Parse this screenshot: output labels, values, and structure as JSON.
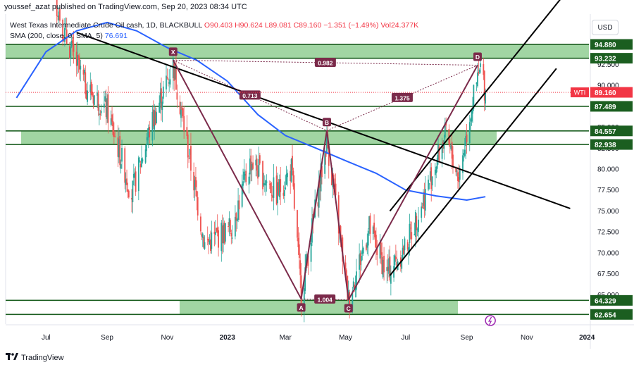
{
  "publisher_line": "youssef_azat published on TradingView.com, Sep 20, 2023 08:34 UTC",
  "legend": {
    "symbol": "West Texas Intermediate Crude Oil cash, 1D, BLACKBULL",
    "open": "O90.403",
    "high": "H90.624",
    "low": "L89.081",
    "close": "C89.160",
    "change": "−1.351 (−1.49%)",
    "volume": "Vol24.377K",
    "sma_label": "SMA (200, close, 0, SMA, 5)",
    "sma_value": "76.691"
  },
  "currency_button": "USD",
  "footer_brand": "TradingView",
  "colors": {
    "up": "#26a69a",
    "down": "#ef5350",
    "sma": "#2962ff",
    "pattern": "#7b2a4a",
    "zone": "#81c784",
    "zone_border": "#1b5e20",
    "price_label": "#f23645"
  },
  "chart_data": {
    "type": "candlestick",
    "y_axis": {
      "ticks": [
        "92.500",
        "90.000",
        "87.500",
        "85.000",
        "82.500",
        "80.000",
        "77.500",
        "75.000",
        "72.500",
        "70.000",
        "67.500",
        "65.000"
      ],
      "range": [
        61.5,
        98.5
      ]
    },
    "x_axis": {
      "ticks": [
        "Jul",
        "Sep",
        "Nov",
        "2023",
        "Mar",
        "May",
        "Jul",
        "Sep",
        "Nov",
        "2024"
      ]
    },
    "price_levels": [
      {
        "label": "94.880",
        "value": 94.88
      },
      {
        "label": "93.232",
        "value": 93.232
      },
      {
        "label": "87.489",
        "value": 87.489
      },
      {
        "label": "84.557",
        "value": 84.557
      },
      {
        "label": "82.938",
        "value": 82.938
      },
      {
        "label": "64.329",
        "value": 64.329
      },
      {
        "label": "62.654",
        "value": 62.654
      }
    ],
    "current_price": {
      "symbol": "WTI",
      "label": "89.160",
      "value": 89.16
    },
    "zones": [
      {
        "top": 94.88,
        "bottom": 93.232
      },
      {
        "top": 84.557,
        "bottom": 82.938
      },
      {
        "top": 64.329,
        "bottom": 62.654
      }
    ],
    "xabcd_pattern": {
      "points": [
        {
          "label": "X",
          "date": "2022-11-07",
          "price": 93.0
        },
        {
          "label": "A",
          "date": "2023-03-17",
          "price": 64.5
        },
        {
          "label": "B",
          "date": "2023-04-12",
          "price": 84.6
        },
        {
          "label": "C",
          "date": "2023-05-04",
          "price": 64.4
        },
        {
          "label": "D",
          "date": "2023-09-12",
          "price": 92.4
        }
      ],
      "ratios": [
        "0.713",
        "0.982",
        "1.375",
        "1.004"
      ]
    },
    "sma_200": [
      {
        "date": "2022-06-01",
        "value": 88.5
      },
      {
        "date": "2022-07-01",
        "value": 94.0
      },
      {
        "date": "2022-08-01",
        "value": 96.5
      },
      {
        "date": "2022-09-01",
        "value": 97.5
      },
      {
        "date": "2022-10-01",
        "value": 96.5
      },
      {
        "date": "2022-11-01",
        "value": 94.5
      },
      {
        "date": "2022-12-01",
        "value": 93.0
      },
      {
        "date": "2023-01-01",
        "value": 90.5
      },
      {
        "date": "2023-02-01",
        "value": 86.5
      },
      {
        "date": "2023-03-01",
        "value": 84.0
      },
      {
        "date": "2023-04-01",
        "value": 82.5
      },
      {
        "date": "2023-05-01",
        "value": 81.0
      },
      {
        "date": "2023-06-01",
        "value": 79.5
      },
      {
        "date": "2023-07-01",
        "value": 77.5
      },
      {
        "date": "2023-08-01",
        "value": 76.8
      },
      {
        "date": "2023-09-01",
        "value": 76.3
      },
      {
        "date": "2023-09-20",
        "value": 76.7
      }
    ],
    "price_path": [
      {
        "date": "2022-06-01",
        "value": 115
      },
      {
        "date": "2022-07-01",
        "value": 105
      },
      {
        "date": "2022-07-20",
        "value": 96
      },
      {
        "date": "2022-08-10",
        "value": 90
      },
      {
        "date": "2022-09-01",
        "value": 87
      },
      {
        "date": "2022-09-26",
        "value": 77
      },
      {
        "date": "2022-10-15",
        "value": 85
      },
      {
        "date": "2022-11-07",
        "value": 92.5
      },
      {
        "date": "2022-12-09",
        "value": 71
      },
      {
        "date": "2023-01-05",
        "value": 73
      },
      {
        "date": "2023-01-25",
        "value": 81
      },
      {
        "date": "2023-02-20",
        "value": 77
      },
      {
        "date": "2023-03-07",
        "value": 80
      },
      {
        "date": "2023-03-17",
        "value": 65
      },
      {
        "date": "2023-04-12",
        "value": 83.5
      },
      {
        "date": "2023-05-04",
        "value": 64.5
      },
      {
        "date": "2023-05-25",
        "value": 73
      },
      {
        "date": "2023-06-12",
        "value": 67.5
      },
      {
        "date": "2023-06-30",
        "value": 70.5
      },
      {
        "date": "2023-07-15",
        "value": 75
      },
      {
        "date": "2023-08-10",
        "value": 84
      },
      {
        "date": "2023-08-24",
        "value": 79
      },
      {
        "date": "2023-09-05",
        "value": 87
      },
      {
        "date": "2023-09-15",
        "value": 92
      },
      {
        "date": "2023-09-20",
        "value": 89.16
      }
    ]
  }
}
